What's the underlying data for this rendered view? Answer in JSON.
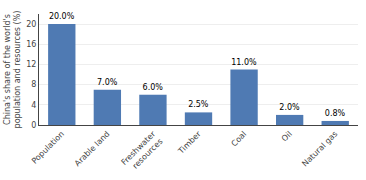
{
  "chart_data": {
    "type": "bar",
    "categories": [
      "Population",
      "Arable land",
      "Freshwater\nresources",
      "Timber",
      "Coal",
      "Oil",
      "Natural gas"
    ],
    "values": [
      20.0,
      7.0,
      6.0,
      2.5,
      11.0,
      2.0,
      0.8
    ],
    "value_labels": [
      "20.0%",
      "7.0%",
      "6.0%",
      "2.5%",
      "11.0%",
      "2.0%",
      "0.8%"
    ],
    "data_labels": true,
    "color": "#4f7ab3",
    "ylabel": "China's share of the world's\npopulation and resources (%)",
    "ylim": [
      0,
      22
    ],
    "yticks": [
      0,
      4,
      8,
      12,
      16,
      20
    ],
    "grid": true
  }
}
